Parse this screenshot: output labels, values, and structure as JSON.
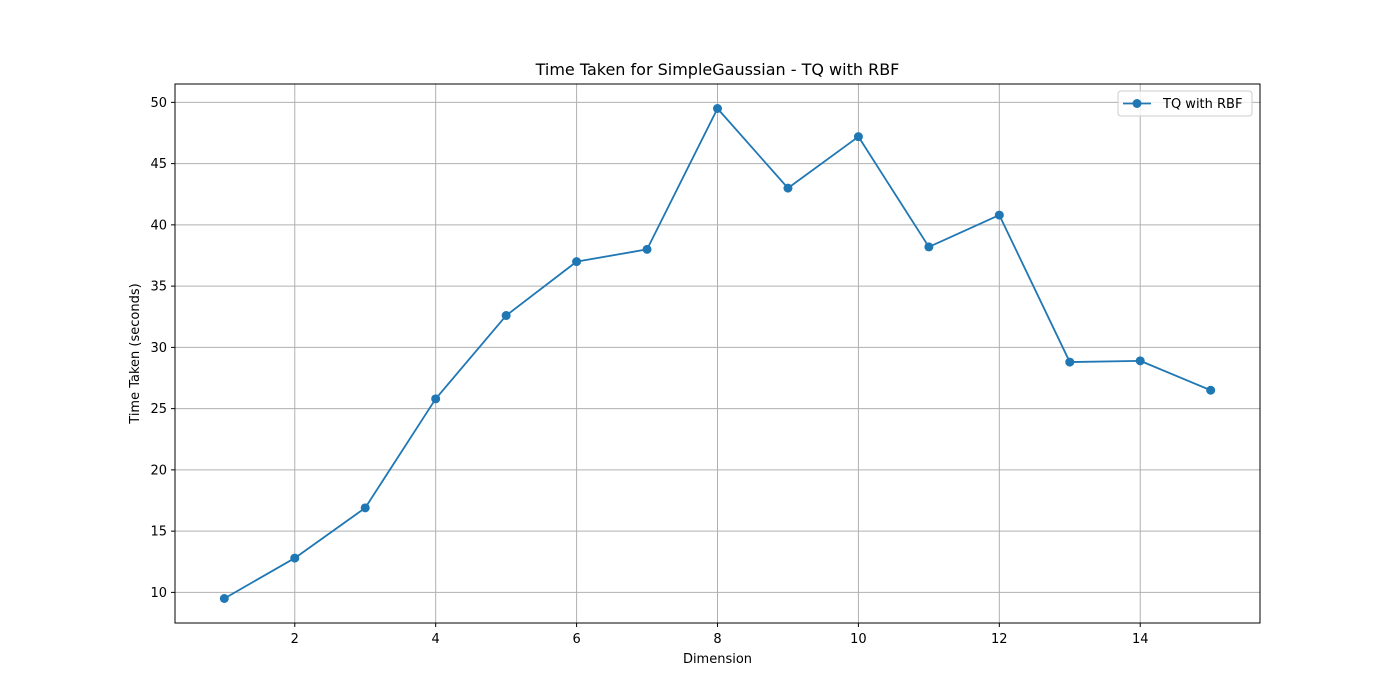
{
  "chart_data": {
    "type": "line",
    "title": "Time Taken for SimpleGaussian - TQ with RBF",
    "xlabel": "Dimension",
    "ylabel": "Time Taken (seconds)",
    "xlim": [
      0.3,
      15.7
    ],
    "ylim": [
      7.5,
      51.5
    ],
    "x_ticks": [
      2,
      4,
      6,
      8,
      10,
      12,
      14
    ],
    "y_ticks": [
      10,
      15,
      20,
      25,
      30,
      35,
      40,
      45,
      50
    ],
    "grid": true,
    "legend_position": "top-right",
    "series": [
      {
        "name": "TQ with RBF",
        "color": "#1f77b4",
        "marker": "circle",
        "x": [
          1,
          2,
          3,
          4,
          5,
          6,
          7,
          8,
          9,
          10,
          11,
          12,
          13,
          14,
          15
        ],
        "y": [
          9.5,
          12.8,
          16.9,
          25.8,
          32.6,
          37.0,
          38.0,
          49.5,
          43.0,
          47.2,
          38.2,
          40.8,
          28.8,
          28.9,
          26.5
        ]
      }
    ]
  }
}
